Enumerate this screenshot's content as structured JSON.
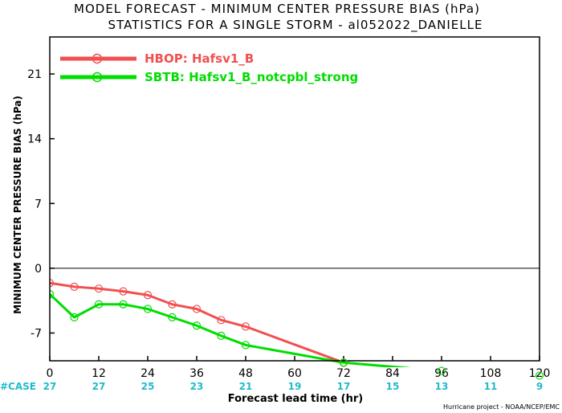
{
  "chart_data": {
    "type": "line",
    "title_line1": "MODEL FORECAST - MINIMUM CENTER PRESSURE BIAS (hPa)",
    "title_line2": "STATISTICS FOR A SINGLE STORM - al052022_DANIELLE",
    "xlabel": "Forecast lead time (hr)",
    "ylabel": "MINIMUM CENTER PRESSURE BIAS (hPa)",
    "xlim": [
      0,
      120
    ],
    "ylim": [
      -10,
      25
    ],
    "x_ticks": [
      0,
      12,
      24,
      36,
      48,
      60,
      72,
      84,
      96,
      108,
      120
    ],
    "y_ticks": [
      -7,
      0,
      7,
      14,
      21
    ],
    "zero_line": true,
    "case_label": "#CASE",
    "case_counts": [
      27,
      27,
      25,
      23,
      21,
      19,
      17,
      15,
      13,
      11,
      9
    ],
    "credit": "Hurricane project - NOAA/NCEP/EMC",
    "legend_position": "top-left",
    "series": [
      {
        "name": "HBOP: Hafsv1_B",
        "color": "#f05050",
        "x": [
          0,
          6,
          12,
          18,
          24,
          30,
          36,
          42,
          48,
          72
        ],
        "y": [
          -1.6,
          -2.0,
          -2.2,
          -2.5,
          -2.9,
          -3.9,
          -4.4,
          -5.6,
          -6.3,
          -10.2
        ]
      },
      {
        "name": "SBTB: Hafsv1_B_notcpbl_strong",
        "color": "#00dd00",
        "x": [
          0,
          6,
          12,
          18,
          24,
          30,
          36,
          42,
          48,
          72,
          96,
          120
        ],
        "y": [
          -2.8,
          -5.3,
          -3.9,
          -3.9,
          -4.4,
          -5.3,
          -6.2,
          -7.3,
          -8.3,
          -10.2,
          -11.1,
          -11.6
        ]
      }
    ],
    "colors": {
      "case_text": "#22bbcc",
      "axis": "#000000"
    }
  }
}
